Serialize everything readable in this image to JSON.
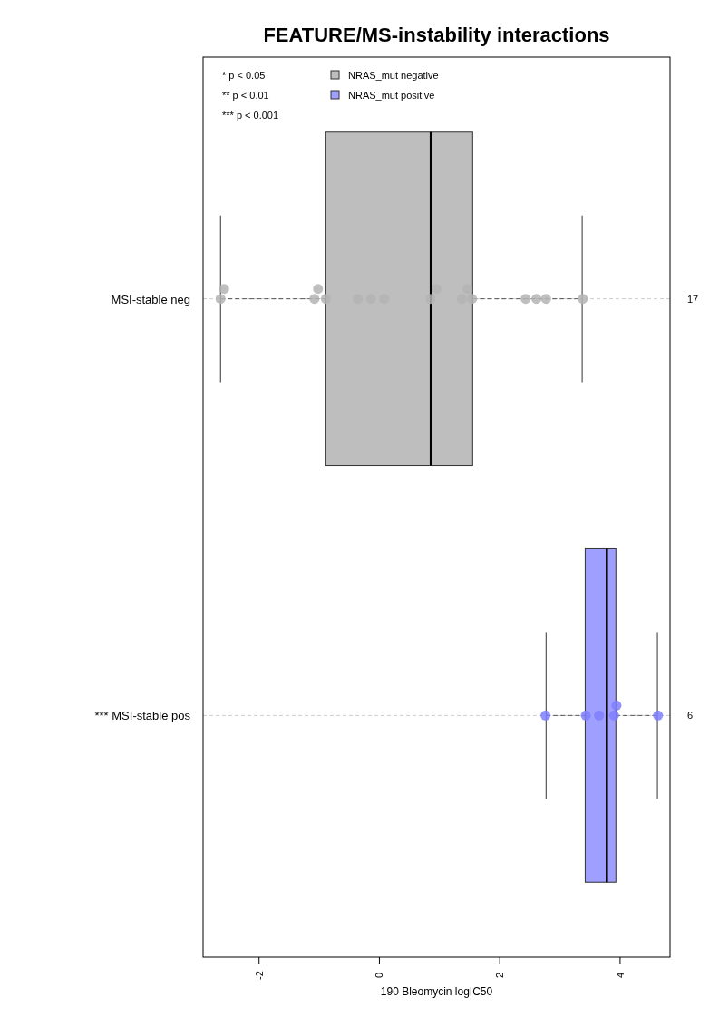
{
  "chart_data": {
    "type": "box",
    "title": "FEATURE/MS-instability interactions",
    "xlabel": "190 Bleomycin logIC50",
    "orientation": "horizontal",
    "categories": [
      "MSI-stable neg",
      "*** MSI-stable pos"
    ],
    "xlim": [
      -2.93,
      4.83
    ],
    "xticks": [
      -2,
      0,
      2,
      4
    ],
    "grid": "y",
    "legend": "top left",
    "series": [
      {
        "name": "NRAS_mut negative",
        "color": "#bebebe",
        "boxes": [
          {
            "low": -2.64,
            "q1": -0.89,
            "median": 0.855,
            "q3": 1.55,
            "high": 3.37
          },
          null
        ]
      },
      {
        "name": "NRAS_mut positive",
        "color": "#9f9fff",
        "boxes": [
          null,
          {
            "low": 2.77,
            "q1": 3.42,
            "median": 3.78,
            "q3": 3.93,
            "high": 4.62
          }
        ]
      },
      {
        "type": "scatter",
        "color": "#b4b4b4",
        "x": [
          "MSI-stable neg",
          "MSI-stable neg",
          "MSI-stable neg",
          "MSI-stable neg",
          "MSI-stable neg",
          "MSI-stable neg",
          "MSI-stable neg",
          "MSI-stable neg",
          "MSI-stable neg",
          "MSI-stable neg",
          "MSI-stable neg",
          "MSI-stable neg",
          "MSI-stable neg",
          "MSI-stable neg",
          "MSI-stable neg",
          "MSI-stable neg",
          "MSI-stable neg"
        ],
        "values": [
          -2.64,
          -2.58,
          -1.08,
          -1.02,
          -0.89,
          -0.36,
          -0.14,
          0.08,
          0.85,
          0.95,
          1.37,
          1.46,
          1.54,
          2.43,
          2.61,
          2.77,
          3.38
        ]
      },
      {
        "type": "scatter",
        "color": "#7f7fff",
        "x": [
          "*** MSI-stable pos",
          "*** MSI-stable pos",
          "*** MSI-stable pos",
          "*** MSI-stable pos",
          "*** MSI-stable pos",
          "*** MSI-stable pos"
        ],
        "values": [
          2.76,
          3.43,
          3.65,
          3.9,
          3.94,
          4.63
        ]
      }
    ],
    "marker": "circle",
    "annotations": [
      "* p < 0.05",
      "** p < 0.01",
      "*** p < 0.001",
      "17",
      "6"
    ]
  }
}
